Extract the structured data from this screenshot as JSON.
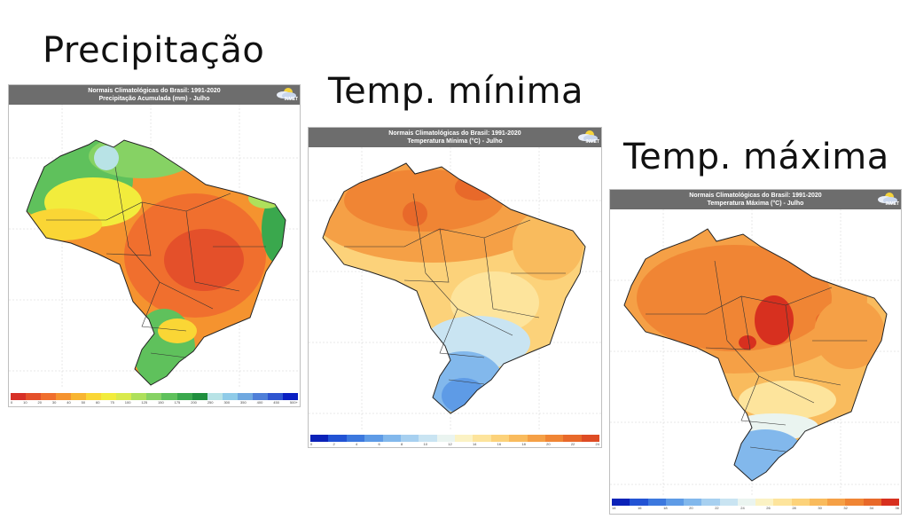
{
  "headings": {
    "precip": "Precipitação",
    "tmin": "Temp. mínima",
    "tmax": "Temp. máxima"
  },
  "panel_header": {
    "line1": "Normais Climatológicas do Brasil: 1991-2020",
    "logo": "INMET"
  },
  "panels": {
    "precip": {
      "line2": "Precipitação Acumulada (mm) - Julho",
      "colors": [
        "#d73027",
        "#e4502a",
        "#f06f2e",
        "#f5932f",
        "#f8b531",
        "#fad635",
        "#f2ec3c",
        "#d9ea4c",
        "#aee05b",
        "#86d264",
        "#5fc15c",
        "#3aa84d",
        "#1f8f3e",
        "#b8e3e6",
        "#8fcbe8",
        "#6fa8e0",
        "#4f7fd8",
        "#2f55d0",
        "#0a1fc2"
      ],
      "ticks": [
        "0",
        "10",
        "20",
        "30",
        "40",
        "50",
        "60",
        "75",
        "100",
        "125",
        "150",
        "175",
        "200",
        "250",
        "300",
        "350",
        "400",
        "450",
        "500+"
      ]
    },
    "tmin": {
      "line2": "Temperatura Mínima (°C) - Julho",
      "colors": [
        "#0b22b8",
        "#2253d4",
        "#3c78de",
        "#5e9be6",
        "#82b8ec",
        "#a7d0f0",
        "#c9e4f2",
        "#eaf4f0",
        "#fbf2c4",
        "#fde49c",
        "#fcd27a",
        "#f9bb5d",
        "#f5a046",
        "#f08534",
        "#e8692a",
        "#de4c24"
      ],
      "ticks": [
        "0",
        "2",
        "4",
        "6",
        "8",
        "10",
        "12",
        "14",
        "16",
        "18",
        "20",
        "22",
        "24"
      ]
    },
    "tmax": {
      "line2": "Temperatura Máxima (°C) - Julho",
      "colors": [
        "#0b22b8",
        "#2253d4",
        "#3c78de",
        "#5e9be6",
        "#82b8ec",
        "#a7d0f0",
        "#c9e4f2",
        "#eaf4f0",
        "#fbf2c4",
        "#fde49c",
        "#fcd27a",
        "#f9bb5d",
        "#f5a046",
        "#f08534",
        "#e8692a",
        "#d7301f"
      ],
      "ticks": [
        "14",
        "16",
        "18",
        "20",
        "22",
        "24",
        "26",
        "28",
        "30",
        "32",
        "34",
        "36"
      ]
    }
  }
}
